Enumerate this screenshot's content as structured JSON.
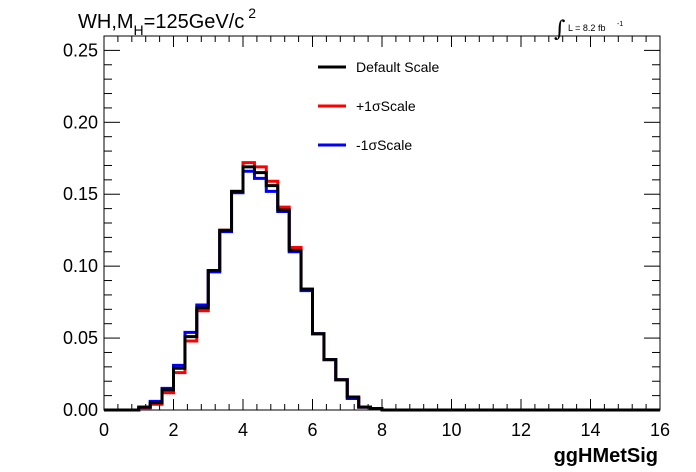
{
  "chart_data": {
    "type": "line",
    "style": "step-histogram",
    "title": {
      "prefix": "WH,M",
      "subscript": "H",
      "mid": "=125GeV/c",
      "superscript": "2"
    },
    "luminosity": {
      "integral_symbol": "∫",
      "text": "L = 8.2 fb",
      "superscript": "-1"
    },
    "xlabel": "ggHMetSig",
    "ylabel": "",
    "xlim": [
      0,
      16
    ],
    "ylim": [
      0,
      0.26
    ],
    "x_ticks": [
      0,
      2,
      4,
      6,
      8,
      10,
      12,
      14,
      16
    ],
    "x_tick_labels": [
      "0",
      "2",
      "4",
      "6",
      "8",
      "10",
      "12",
      "14",
      "16"
    ],
    "y_ticks": [
      0,
      0.05,
      0.1,
      0.15,
      0.2,
      0.25
    ],
    "y_tick_labels": [
      "0.00",
      "0.05",
      "0.10",
      "0.15",
      "0.20",
      "0.25"
    ],
    "grid": false,
    "legend_position": "top-center",
    "bin_edges": [
      1.0,
      1.33,
      1.67,
      2.0,
      2.33,
      2.67,
      3.0,
      3.33,
      3.67,
      4.0,
      4.33,
      4.67,
      5.0,
      5.33,
      5.67,
      6.0,
      6.33,
      6.67,
      7.0,
      7.33,
      7.67,
      8.0,
      8.33
    ],
    "series": [
      {
        "name": "+1σScale",
        "color": "#ff0000",
        "values": [
          0.001,
          0.004,
          0.012,
          0.026,
          0.048,
          0.069,
          0.097,
          0.125,
          0.152,
          0.172,
          0.169,
          0.159,
          0.141,
          0.113,
          0.084,
          0.053,
          0.035,
          0.021,
          0.009,
          0.002,
          0.001,
          0.0
        ]
      },
      {
        "name": "-1σScale",
        "color": "#0000ff",
        "values": [
          0.002,
          0.006,
          0.015,
          0.031,
          0.054,
          0.073,
          0.096,
          0.124,
          0.151,
          0.166,
          0.161,
          0.152,
          0.138,
          0.11,
          0.083,
          0.053,
          0.035,
          0.021,
          0.008,
          0.002,
          0.001,
          0.0
        ]
      },
      {
        "name": "Default Scale",
        "color": "#000000",
        "values": [
          0.002,
          0.005,
          0.014,
          0.029,
          0.051,
          0.071,
          0.097,
          0.125,
          0.152,
          0.169,
          0.165,
          0.156,
          0.139,
          0.111,
          0.084,
          0.053,
          0.035,
          0.021,
          0.009,
          0.002,
          0.001,
          0.0
        ]
      }
    ],
    "legend_entries": [
      {
        "name": "Default Scale",
        "color": "#000000"
      },
      {
        "name": "+1σScale",
        "color": "#ff0000"
      },
      {
        "name": "-1σScale",
        "color": "#0000ff"
      }
    ]
  }
}
